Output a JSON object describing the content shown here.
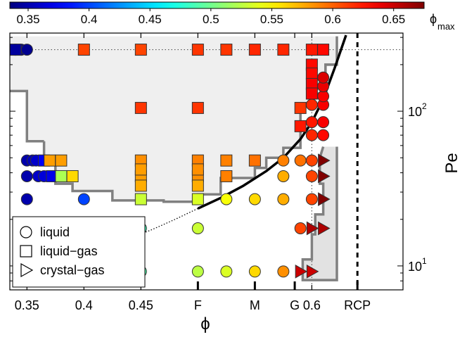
{
  "chart_data": {
    "type": "scatter",
    "x_axis": {
      "label": "ϕ",
      "range": [
        0.335,
        0.68
      ],
      "ticks": [
        {
          "x": 0.35,
          "label": "0.35"
        },
        {
          "x": 0.4,
          "label": "0.4"
        },
        {
          "x": 0.45,
          "label": "0.45"
        },
        {
          "x": 0.5,
          "label": "F"
        },
        {
          "x": 0.55,
          "label": "M"
        },
        {
          "x": 0.585,
          "label": "G"
        },
        {
          "x": 0.6,
          "label": "0.6"
        },
        {
          "x": 0.64,
          "label": "RCP"
        }
      ]
    },
    "y_axis": {
      "label": "Pe",
      "scale": "log",
      "range": [
        7,
        320
      ],
      "tick_labels": [
        "10",
        "10"
      ],
      "tick_superscripts": [
        "1",
        "2"
      ]
    },
    "colorbar": {
      "label": "ϕ",
      "label_subscript": "max",
      "range": [
        0.335,
        0.675
      ],
      "tick_values": [
        0.35,
        0.4,
        0.45,
        0.5,
        0.55,
        0.6,
        0.65
      ],
      "tick_labels": [
        "0.35",
        "0.4",
        "0.45",
        "0.5",
        "0.55",
        "0.6",
        "0.65"
      ]
    },
    "legend": {
      "position": "bottom-left",
      "entries": [
        {
          "marker": "circle",
          "label": "liquid"
        },
        {
          "marker": "square",
          "label": "liquid−gas"
        },
        {
          "marker": "triangle",
          "label": "crystal−gas"
        }
      ]
    },
    "series": [
      {
        "marker": "circle",
        "points": [
          {
            "x": 0.34,
            "pe": 250,
            "phimax": 0.34
          },
          {
            "x": 0.345,
            "pe": 250,
            "phimax": 0.34
          },
          {
            "x": 0.35,
            "pe": 250,
            "phimax": 0.34
          },
          {
            "x": 0.35,
            "pe": 48,
            "phimax": 0.35
          },
          {
            "x": 0.355,
            "pe": 48,
            "phimax": 0.355
          },
          {
            "x": 0.358,
            "pe": 48,
            "phimax": 0.36
          },
          {
            "x": 0.35,
            "pe": 38,
            "phimax": 0.35
          },
          {
            "x": 0.36,
            "pe": 38,
            "phimax": 0.36
          },
          {
            "x": 0.365,
            "pe": 38,
            "phimax": 0.365
          },
          {
            "x": 0.35,
            "pe": 27,
            "phimax": 0.35
          },
          {
            "x": 0.4,
            "pe": 27,
            "phimax": 0.4
          },
          {
            "x": 0.45,
            "pe": 17.5,
            "phimax": 0.485
          },
          {
            "x": 0.5,
            "pe": 17.5,
            "phimax": 0.53
          },
          {
            "x": 0.45,
            "pe": 9.2,
            "phimax": 0.49
          },
          {
            "x": 0.5,
            "pe": 9.2,
            "phimax": 0.525
          },
          {
            "x": 0.525,
            "pe": 9.2,
            "phimax": 0.535
          },
          {
            "x": 0.55,
            "pe": 9.2,
            "phimax": 0.56
          },
          {
            "x": 0.575,
            "pe": 9.2,
            "phimax": 0.585
          },
          {
            "x": 0.525,
            "pe": 27,
            "phimax": 0.545
          },
          {
            "x": 0.55,
            "pe": 27,
            "phimax": 0.56
          },
          {
            "x": 0.575,
            "pe": 27,
            "phimax": 0.575
          },
          {
            "x": 0.575,
            "pe": 38,
            "phimax": 0.575
          },
          {
            "x": 0.575,
            "pe": 48,
            "phimax": 0.59
          },
          {
            "x": 0.59,
            "pe": 48,
            "phimax": 0.595
          },
          {
            "x": 0.6,
            "pe": 48,
            "phimax": 0.61
          },
          {
            "x": 0.6,
            "pe": 38,
            "phimax": 0.61
          },
          {
            "x": 0.6,
            "pe": 27,
            "phimax": 0.61
          },
          {
            "x": 0.59,
            "pe": 17.5,
            "phimax": 0.61
          },
          {
            "x": 0.6,
            "pe": 110,
            "phimax": 0.62
          },
          {
            "x": 0.61,
            "pe": 110,
            "phimax": 0.635
          },
          {
            "x": 0.61,
            "pe": 125,
            "phimax": 0.635
          },
          {
            "x": 0.61,
            "pe": 145,
            "phimax": 0.64
          },
          {
            "x": 0.61,
            "pe": 165,
            "phimax": 0.645
          },
          {
            "x": 0.61,
            "pe": 85,
            "phimax": 0.635
          },
          {
            "x": 0.6,
            "pe": 85,
            "phimax": 0.625
          },
          {
            "x": 0.6,
            "pe": 70,
            "phimax": 0.62
          },
          {
            "x": 0.61,
            "pe": 70,
            "phimax": 0.63
          }
        ]
      },
      {
        "marker": "square",
        "points": [
          {
            "x": 0.34,
            "pe": 250,
            "phimax": 0.345
          },
          {
            "x": 0.4,
            "pe": 250,
            "phimax": 0.61
          },
          {
            "x": 0.45,
            "pe": 250,
            "phimax": 0.61
          },
          {
            "x": 0.5,
            "pe": 250,
            "phimax": 0.615
          },
          {
            "x": 0.525,
            "pe": 250,
            "phimax": 0.615
          },
          {
            "x": 0.55,
            "pe": 250,
            "phimax": 0.62
          },
          {
            "x": 0.575,
            "pe": 250,
            "phimax": 0.62
          },
          {
            "x": 0.6,
            "pe": 250,
            "phimax": 0.625
          },
          {
            "x": 0.61,
            "pe": 250,
            "phimax": 0.63
          },
          {
            "x": 0.6,
            "pe": 200,
            "phimax": 0.63
          },
          {
            "x": 0.6,
            "pe": 175,
            "phimax": 0.63
          },
          {
            "x": 0.6,
            "pe": 150,
            "phimax": 0.635
          },
          {
            "x": 0.6,
            "pe": 130,
            "phimax": 0.635
          },
          {
            "x": 0.45,
            "pe": 105,
            "phimax": 0.615
          },
          {
            "x": 0.5,
            "pe": 105,
            "phimax": 0.615
          },
          {
            "x": 0.59,
            "pe": 105,
            "phimax": 0.615
          },
          {
            "x": 0.59,
            "pe": 80,
            "phimax": 0.625
          },
          {
            "x": 0.365,
            "pe": 48,
            "phimax": 0.375
          },
          {
            "x": 0.37,
            "pe": 48,
            "phimax": 0.58
          },
          {
            "x": 0.38,
            "pe": 48,
            "phimax": 0.58
          },
          {
            "x": 0.45,
            "pe": 48,
            "phimax": 0.585
          },
          {
            "x": 0.5,
            "pe": 48,
            "phimax": 0.59
          },
          {
            "x": 0.525,
            "pe": 48,
            "phimax": 0.59
          },
          {
            "x": 0.55,
            "pe": 48,
            "phimax": 0.595
          },
          {
            "x": 0.372,
            "pe": 38,
            "phimax": 0.37
          },
          {
            "x": 0.38,
            "pe": 38,
            "phimax": 0.52
          },
          {
            "x": 0.39,
            "pe": 38,
            "phimax": 0.56
          },
          {
            "x": 0.45,
            "pe": 38,
            "phimax": 0.58
          },
          {
            "x": 0.5,
            "pe": 38,
            "phimax": 0.585
          },
          {
            "x": 0.525,
            "pe": 38,
            "phimax": 0.59
          },
          {
            "x": 0.45,
            "pe": 42,
            "phimax": 0.58
          },
          {
            "x": 0.5,
            "pe": 42,
            "phimax": 0.585
          },
          {
            "x": 0.45,
            "pe": 33,
            "phimax": 0.575
          },
          {
            "x": 0.5,
            "pe": 33,
            "phimax": 0.575
          },
          {
            "x": 0.45,
            "pe": 27,
            "phimax": 0.53
          },
          {
            "x": 0.5,
            "pe": 27,
            "phimax": 0.535
          }
        ]
      },
      {
        "marker": "triangle",
        "points": [
          {
            "x": 0.61,
            "pe": 48,
            "phimax": 0.675
          },
          {
            "x": 0.61,
            "pe": 38,
            "phimax": 0.675
          },
          {
            "x": 0.61,
            "pe": 27,
            "phimax": 0.675
          },
          {
            "x": 0.6,
            "pe": 17.5,
            "phimax": 0.66
          },
          {
            "x": 0.61,
            "pe": 17.5,
            "phimax": 0.66
          },
          {
            "x": 0.59,
            "pe": 9.2,
            "phimax": 0.65
          },
          {
            "x": 0.6,
            "pe": 9.2,
            "phimax": 0.65
          }
        ]
      }
    ],
    "regions": [
      {
        "name": "liquid-gas",
        "fill": "#efefef"
      },
      {
        "name": "crystal-gas",
        "fill": "#e2e2e2"
      }
    ],
    "reference_lines": {
      "dotted_vertical_x": 0.6,
      "dashed_vertical_x": 0.64,
      "dotted_horizontal_pe": 250
    }
  }
}
